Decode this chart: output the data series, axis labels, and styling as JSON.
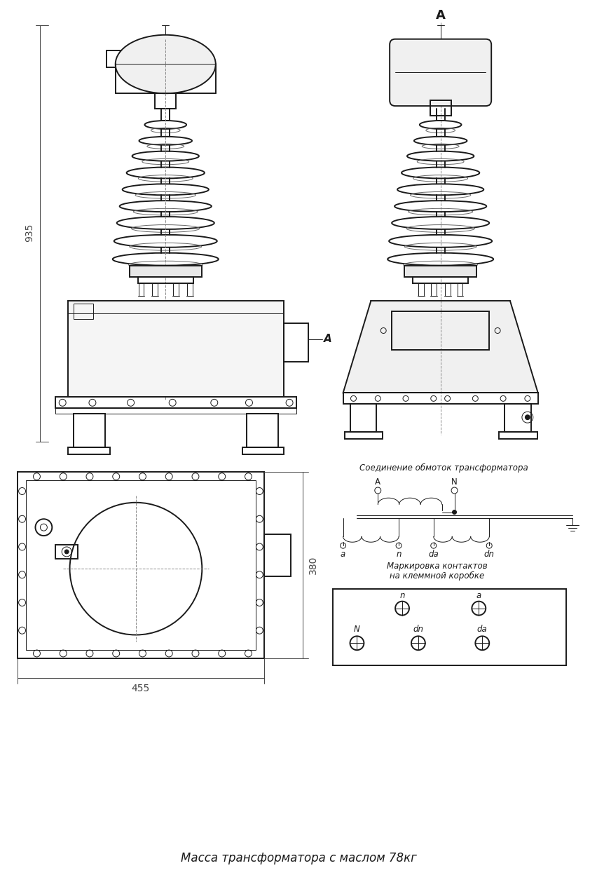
{
  "bg_color": "#ffffff",
  "line_color": "#1a1a1a",
  "dim_color": "#444444",
  "text_color": "#1a1a1a",
  "title": "Масса трансформатора с маслом 78кг",
  "label_935": "935",
  "label_380": "380",
  "label_455": "455",
  "label_A_top": "A",
  "label_A_side": "A",
  "schema_title": "Соединение обмоток трансформатора",
  "markup_title1": "Маркировка контактов",
  "markup_title2": "на клеммной коробке"
}
